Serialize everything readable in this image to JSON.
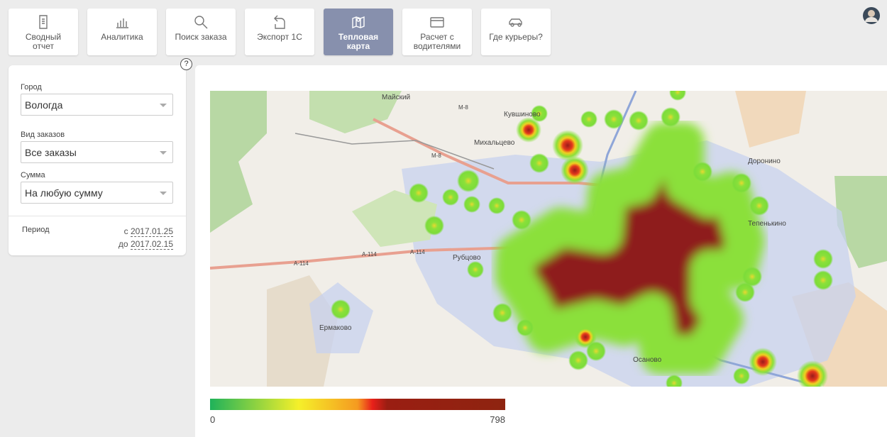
{
  "nav": {
    "items": [
      "Сводный отчет",
      "Аналитика",
      "Поиск заказа",
      "Экспорт 1С",
      "Тепловая карта",
      "Расчет с водителями",
      "Где курьеры?"
    ]
  },
  "filters": {
    "help_icon": "?",
    "fields": [
      {
        "label": "Город",
        "value": "Вологда"
      },
      {
        "label": "Вид заказов",
        "value": "Все заказы"
      },
      {
        "label": "Сумма",
        "value": "На любую сумму"
      }
    ],
    "period": {
      "label": "Период",
      "from_prefix": "с",
      "from": "2017.01.25",
      "to_prefix": "до",
      "to": "2017.02.15"
    }
  },
  "map": {
    "labels": [
      "Майский",
      "Кувшиново",
      "Михальцево",
      "Доронино",
      "Тепенькино",
      "Рубцово",
      "Ермаково",
      "Осаново",
      "М-8",
      "М-8",
      "А-114",
      "А-114",
      "А-114"
    ]
  },
  "legend": {
    "min": 0,
    "max": 798
  }
}
